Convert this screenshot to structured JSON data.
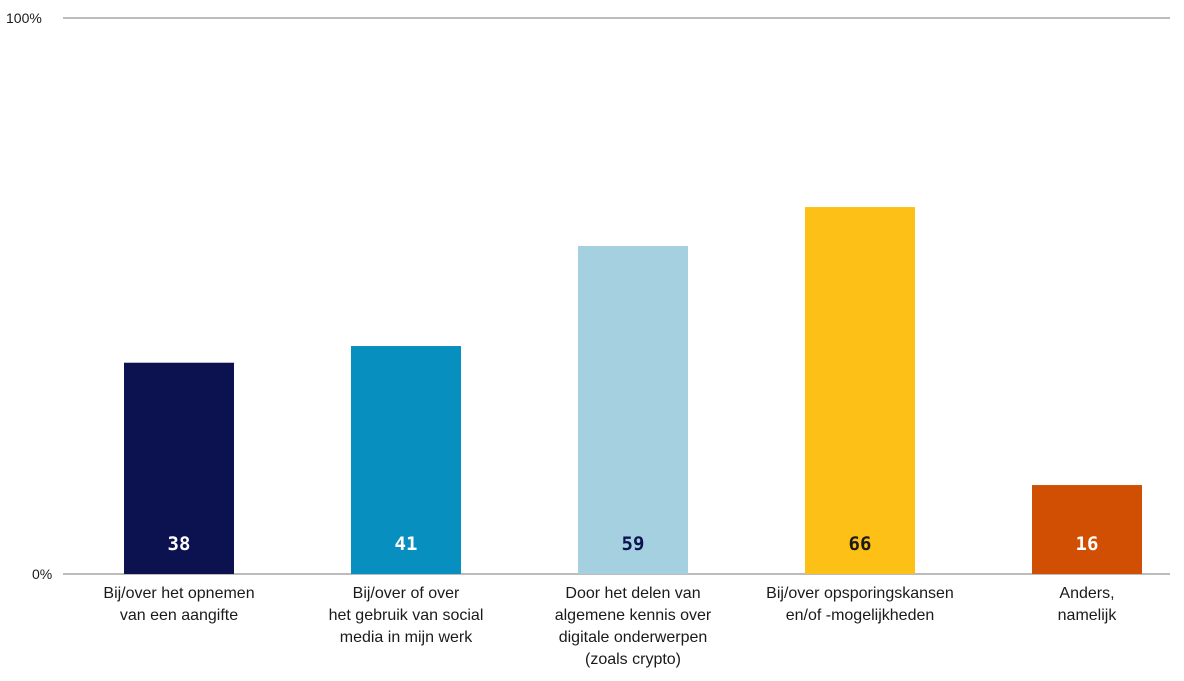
{
  "chart_data": {
    "type": "bar",
    "title": "",
    "xlabel": "",
    "ylabel": "",
    "ylim": [
      0,
      100
    ],
    "y_tick_labels": [
      "0%",
      "100%"
    ],
    "grid": false,
    "categories": [
      [
        "Bij/over het opnemen",
        "van een aangifte"
      ],
      [
        "Bij/over of over",
        "het gebruik van social",
        "media in mijn werk"
      ],
      [
        "Door het delen van",
        "algemene kennis over",
        "digitale onderwerpen",
        "(zoals crypto)"
      ],
      [
        "Bij/over opsporingskansen",
        "en/of -mogelijkheden"
      ],
      [
        "Anders,",
        "namelijk"
      ]
    ],
    "values": [
      38,
      41,
      59,
      66,
      16
    ],
    "bar_colors": [
      "#0c1150",
      "#078fc0",
      "#a4d0e0",
      "#fcc016",
      "#d14f03"
    ],
    "value_label_colors": [
      "#ffffff",
      "#ffffff",
      "#0c1150",
      "#1a1a1a",
      "#ffffff"
    ]
  }
}
